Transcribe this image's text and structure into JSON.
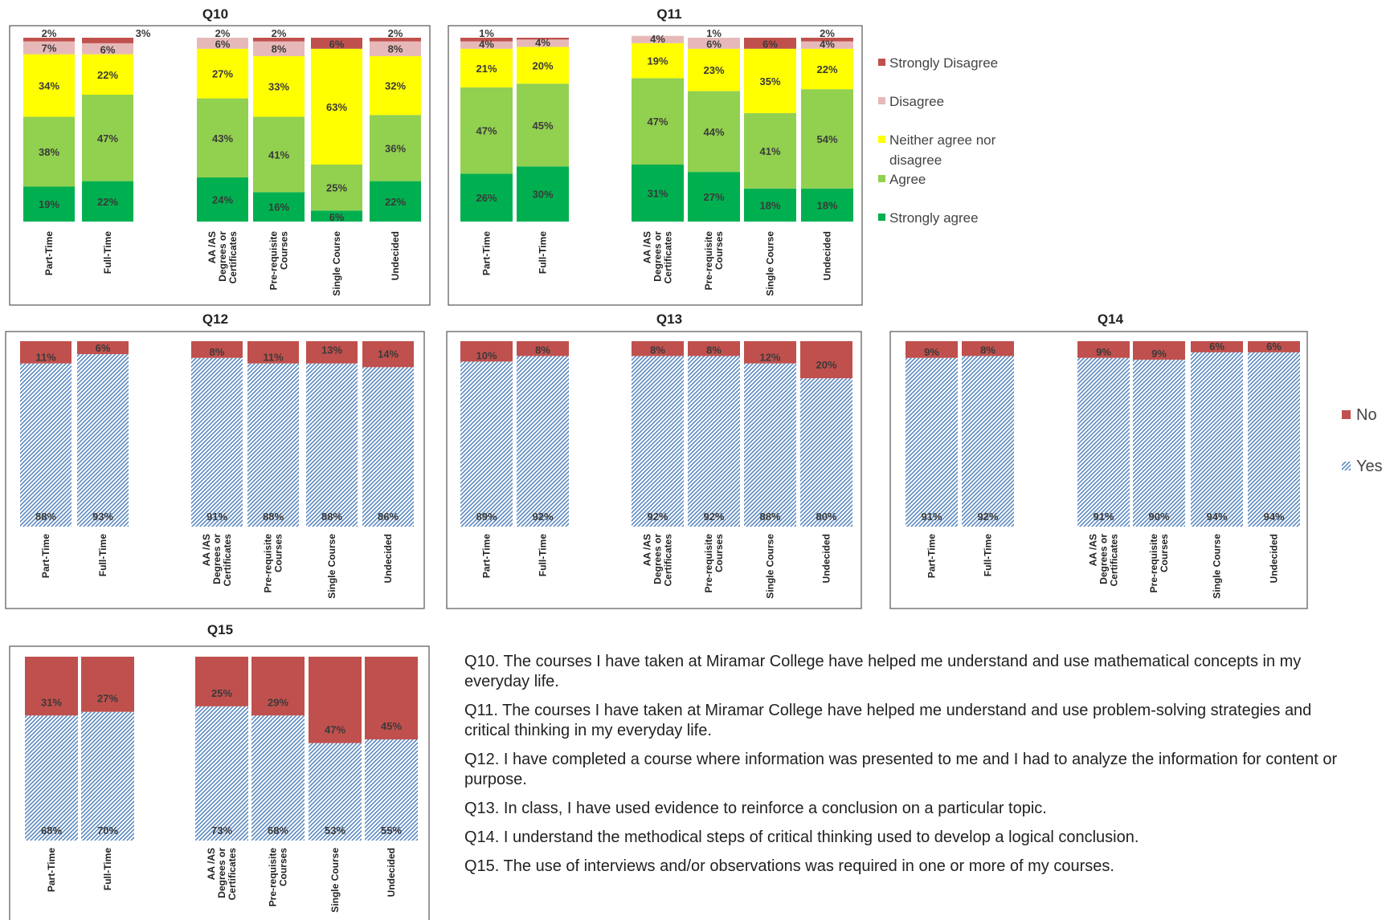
{
  "legend_agree": [
    {
      "label": "Strongly Disagree",
      "color": "#c0504d"
    },
    {
      "label": "Disagree",
      "color": "#e6b9b8"
    },
    {
      "label_lines": [
        "Neither agree nor",
        "disagree"
      ],
      "color": "#ffff00"
    },
    {
      "label": "Agree",
      "color": "#92d050"
    },
    {
      "label": "Strongly agree",
      "color": "#00b050"
    }
  ],
  "legend_yesno": [
    {
      "label": "No",
      "color": "#c0504d"
    },
    {
      "label": "Yes",
      "color": "#4f81bd"
    }
  ],
  "chart_data": [
    {
      "id": "Q10",
      "title": "Q10",
      "type": "bar",
      "stacked": true,
      "categories": [
        "Part-Time",
        "Full-Time",
        "AA /AS Degrees or Certificates",
        "Pre-requisite Courses",
        "Single Course",
        "Undecided"
      ],
      "category_lines": [
        [
          "Part-Time"
        ],
        [
          "Full-Time"
        ],
        [
          "AA /AS",
          "Degrees or",
          "Certificates"
        ],
        [
          "Pre-requisite",
          "Courses"
        ],
        [
          "Single Course"
        ],
        [
          "Undecided"
        ]
      ],
      "series": [
        {
          "name": "Strongly agree",
          "values": [
            19,
            22,
            24,
            16,
            6,
            22
          ]
        },
        {
          "name": "Agree",
          "values": [
            38,
            47,
            43,
            41,
            25,
            36
          ]
        },
        {
          "name": "Neither agree nor disagree",
          "values": [
            34,
            22,
            27,
            33,
            63,
            32
          ]
        },
        {
          "name": "Disagree",
          "values": [
            7,
            6,
            6,
            8,
            0,
            8
          ]
        },
        {
          "name": "Strongly Disagree",
          "values": [
            2,
            3,
            2,
            2,
            6,
            2
          ]
        }
      ],
      "ylim": [
        0,
        100
      ]
    },
    {
      "id": "Q11",
      "title": "Q11",
      "type": "bar",
      "stacked": true,
      "categories": [
        "Part-Time",
        "Full-Time",
        "AA /AS Degrees or Certificates",
        "Pre-requisite Courses",
        "Single Course",
        "Undecided"
      ],
      "category_lines": [
        [
          "Part-Time"
        ],
        [
          "Full-Time"
        ],
        [
          "AA /AS",
          "Degrees or",
          "Certificates"
        ],
        [
          "Pre-requisite",
          "Courses"
        ],
        [
          "Single Course"
        ],
        [
          "Undecided"
        ]
      ],
      "series": [
        {
          "name": "Strongly agree",
          "values": [
            26,
            30,
            31,
            27,
            18,
            18
          ]
        },
        {
          "name": "Agree",
          "values": [
            47,
            45,
            47,
            44,
            41,
            54
          ]
        },
        {
          "name": "Neither agree nor disagree",
          "values": [
            21,
            20,
            19,
            23,
            35,
            22
          ]
        },
        {
          "name": "Disagree",
          "values": [
            4,
            4,
            4,
            6,
            0,
            4
          ]
        },
        {
          "name": "Strongly Disagree",
          "values": [
            1,
            0,
            0,
            1,
            6,
            2
          ]
        }
      ],
      "ylim": [
        0,
        100
      ]
    },
    {
      "id": "Q12",
      "title": "Q12",
      "type": "bar",
      "stacked": true,
      "categories": [
        "Part-Time",
        "Full-Time",
        "AA /AS Degrees or Certificates",
        "Pre-requisite Courses",
        "Single Course",
        "Undecided"
      ],
      "category_lines": [
        [
          "Part-Time"
        ],
        [
          "Full-Time"
        ],
        [
          "AA /AS",
          "Degrees or",
          "Certificates"
        ],
        [
          "Pre-requisite",
          "Courses"
        ],
        [
          "Single Course"
        ],
        [
          "Undecided"
        ]
      ],
      "series": [
        {
          "name": "Yes",
          "values": [
            88,
            93,
            91,
            88,
            88,
            86
          ]
        },
        {
          "name": "No",
          "values": [
            11,
            6,
            8,
            11,
            13,
            14
          ]
        }
      ],
      "ylim": [
        0,
        100
      ]
    },
    {
      "id": "Q13",
      "title": "Q13",
      "type": "bar",
      "stacked": true,
      "categories": [
        "Part-Time",
        "Full-Time",
        "AA /AS Degrees or Certificates",
        "Pre-requisite Courses",
        "Single Course",
        "Undecided"
      ],
      "category_lines": [
        [
          "Part-Time"
        ],
        [
          "Full-Time"
        ],
        [
          "AA /AS",
          "Degrees or",
          "Certificates"
        ],
        [
          "Pre-requisite",
          "Courses"
        ],
        [
          "Single Course"
        ],
        [
          "Undecided"
        ]
      ],
      "series": [
        {
          "name": "Yes",
          "values": [
            89,
            92,
            92,
            92,
            88,
            80
          ]
        },
        {
          "name": "No",
          "values": [
            10,
            8,
            8,
            8,
            12,
            20
          ]
        }
      ],
      "ylim": [
        0,
        100
      ]
    },
    {
      "id": "Q14",
      "title": "Q14",
      "type": "bar",
      "stacked": true,
      "categories": [
        "Part-Time",
        "Full-Time",
        "AA /AS Degrees or Certificates",
        "Pre-requisite Courses",
        "Single Course",
        "Undecided"
      ],
      "category_lines": [
        [
          "Part-Time"
        ],
        [
          "Full-Time"
        ],
        [
          "AA /AS",
          "Degrees or",
          "Certificates"
        ],
        [
          "Pre-requisite",
          "Courses"
        ],
        [
          "Single Course"
        ],
        [
          "Undecided"
        ]
      ],
      "series": [
        {
          "name": "Yes",
          "values": [
            91,
            92,
            91,
            90,
            94,
            94
          ]
        },
        {
          "name": "No",
          "values": [
            9,
            8,
            9,
            9,
            6,
            6
          ]
        }
      ],
      "ylim": [
        0,
        100
      ]
    },
    {
      "id": "Q15",
      "title": "Q15",
      "type": "bar",
      "stacked": true,
      "categories": [
        "Part-Time",
        "Full-Time",
        "AA /AS Degrees or Certificates",
        "Pre-requisite Courses",
        "Single Course",
        "Undecided"
      ],
      "category_lines": [
        [
          "Part-Time"
        ],
        [
          "Full-Time"
        ],
        [
          "AA /AS",
          "Degrees or",
          "Certificates"
        ],
        [
          "Pre-requisite",
          "Courses"
        ],
        [
          "Single Course"
        ],
        [
          "Undecided"
        ]
      ],
      "series": [
        {
          "name": "Yes",
          "values": [
            68,
            70,
            73,
            68,
            53,
            55
          ]
        },
        {
          "name": "No",
          "values": [
            31,
            27,
            25,
            29,
            47,
            45
          ]
        }
      ],
      "ylim": [
        0,
        100
      ]
    }
  ],
  "questions": [
    "Q10. The courses I have taken at Miramar College have helped me understand and use mathematical concepts in my everyday life.",
    "Q11. The courses I have taken at Miramar College have helped me understand and use problem-solving strategies and critical thinking in my everyday life.",
    "Q12. I have completed a course where information was presented to me and I had to analyze the information for content or purpose.",
    "Q13. In class, I have used evidence to reinforce a conclusion on a particular topic.",
    "Q14. I understand the methodical steps of critical thinking used to develop a logical conclusion.",
    "Q15. The use of interviews and/or observations was required in one or more of my courses."
  ]
}
